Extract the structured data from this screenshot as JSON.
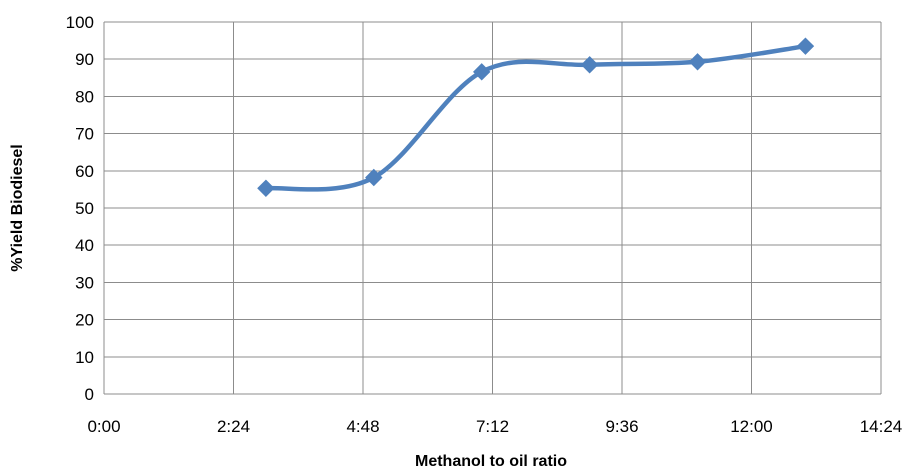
{
  "chart_data": {
    "type": "line",
    "title": "",
    "xlabel": "Methanol to oil ratio",
    "ylabel": "%Yield Biodiesel",
    "x_unit": "h:mm",
    "xlim": [
      0,
      864
    ],
    "ylim": [
      0,
      100
    ],
    "x_ticks": [
      {
        "value": 0,
        "label": "0:00"
      },
      {
        "value": 144,
        "label": "2:24"
      },
      {
        "value": 288,
        "label": "4:48"
      },
      {
        "value": 432,
        "label": "7:12"
      },
      {
        "value": 576,
        "label": "9:36"
      },
      {
        "value": 720,
        "label": "12:00"
      },
      {
        "value": 864,
        "label": "14:24"
      }
    ],
    "y_ticks": [
      {
        "value": 0,
        "label": "0"
      },
      {
        "value": 10,
        "label": "10"
      },
      {
        "value": 20,
        "label": "20"
      },
      {
        "value": 30,
        "label": "30"
      },
      {
        "value": 40,
        "label": "40"
      },
      {
        "value": 50,
        "label": "50"
      },
      {
        "value": 60,
        "label": "60"
      },
      {
        "value": 70,
        "label": "70"
      },
      {
        "value": 80,
        "label": "80"
      },
      {
        "value": 90,
        "label": "90"
      },
      {
        "value": 100,
        "label": "100"
      }
    ],
    "grid": true,
    "legend": "none",
    "series": [
      {
        "x": [
          180,
          300,
          420,
          540,
          660,
          780
        ],
        "x_labels": [
          "3:00",
          "5:00",
          "7:00",
          "9:00",
          "11:00",
          "13:00"
        ],
        "y": [
          55.3,
          58.2,
          86.6,
          88.5,
          89.3,
          93.5
        ],
        "color": "#4f81bd",
        "marker": "diamond",
        "smooth": true
      }
    ]
  }
}
